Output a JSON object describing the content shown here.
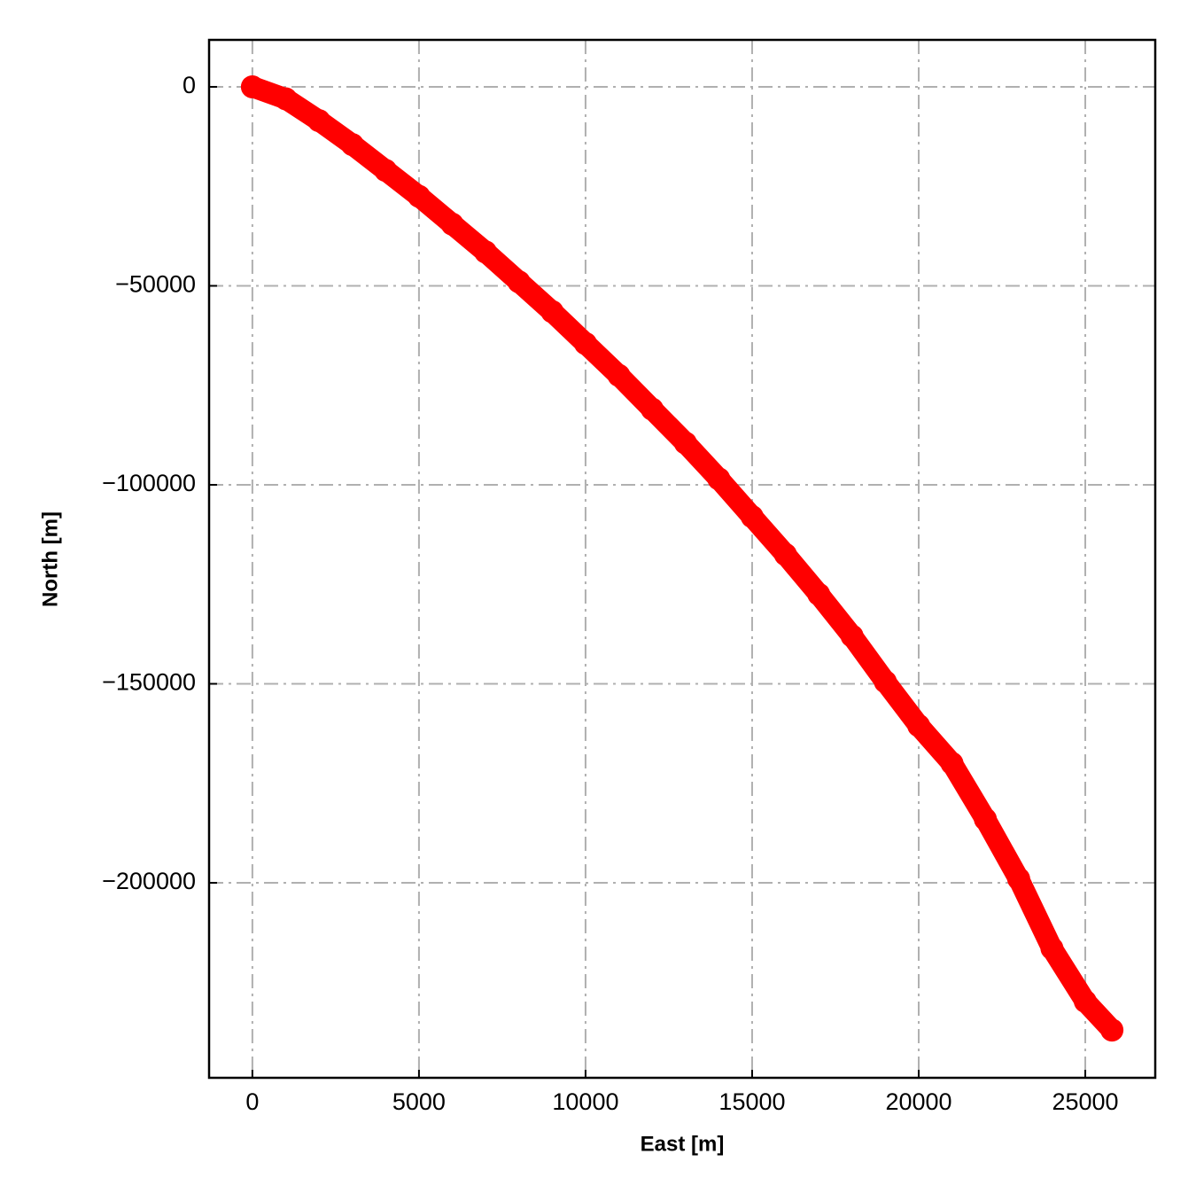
{
  "chart_data": {
    "type": "scatter",
    "xlabel": "East [m]",
    "ylabel": "North [m]",
    "x": [
      0,
      1000,
      2000,
      3000,
      4000,
      5000,
      6000,
      7000,
      8000,
      9000,
      10000,
      11000,
      12000,
      13000,
      14000,
      15000,
      16000,
      17000,
      18000,
      19000,
      20000,
      21000,
      22000,
      23000,
      24000,
      25000,
      25800
    ],
    "y": [
      0,
      -3000,
      -8500,
      -14500,
      -21000,
      -27500,
      -34500,
      -41500,
      -49000,
      -56500,
      -64500,
      -72500,
      -81000,
      -89500,
      -98500,
      -108000,
      -117500,
      -127500,
      -138000,
      -149500,
      -160500,
      -170000,
      -184000,
      -199000,
      -216500,
      -229800,
      -237000
    ],
    "color": "#ff0000",
    "xlim": [
      -1300,
      27100
    ],
    "ylim": [
      -249000,
      11800
    ],
    "xticks": [
      0,
      5000,
      10000,
      15000,
      20000,
      25000
    ],
    "yticks": [
      {
        "value": -200000,
        "label": "−200000"
      },
      {
        "value": -150000,
        "label": "−150000"
      },
      {
        "value": -100000,
        "label": "−100000"
      },
      {
        "value": -50000,
        "label": "−50000"
      },
      0
    ],
    "grid": true
  }
}
